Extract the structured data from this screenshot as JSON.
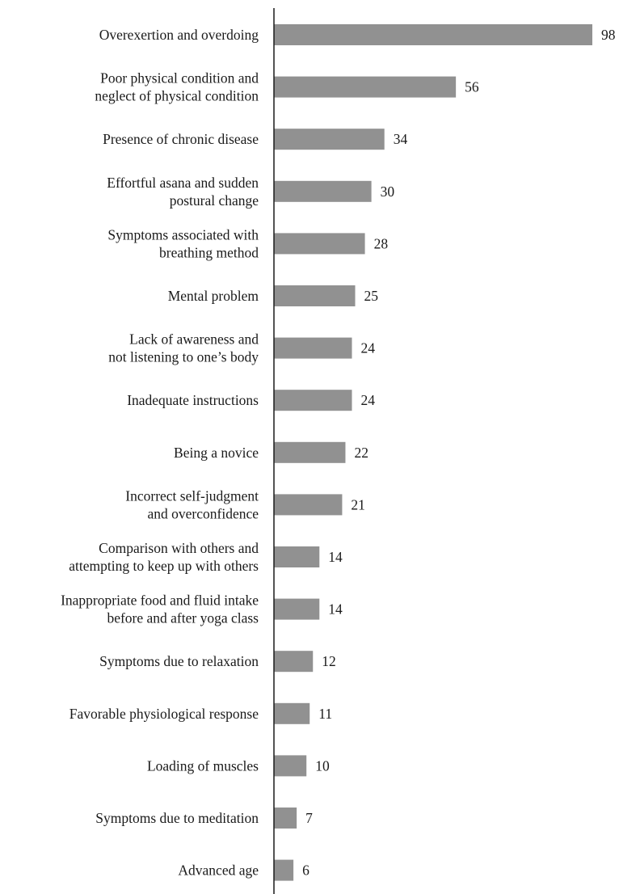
{
  "chart_data": {
    "type": "bar",
    "orientation": "horizontal",
    "title": "",
    "xlabel": "",
    "ylabel": "",
    "xlim": [
      0,
      98
    ],
    "grid": false,
    "legend": "none",
    "colors": {
      "bar": "#919191",
      "text": "#1a1a1a",
      "axis": "#1a1a1a"
    },
    "categories": [
      [
        "Overexertion and overdoing"
      ],
      [
        "Poor physical condition and",
        "neglect of physical condition"
      ],
      [
        "Presence of chronic disease"
      ],
      [
        "Effortful asana and sudden",
        "postural change"
      ],
      [
        "Symptoms associated with",
        "breathing method"
      ],
      [
        "Mental problem"
      ],
      [
        "Lack of awareness and",
        "not listening to one’s body"
      ],
      [
        "Inadequate instructions"
      ],
      [
        "Being a novice"
      ],
      [
        "Incorrect self-judgment",
        "and overconfidence"
      ],
      [
        "Comparison with others and",
        "attempting to keep up with others"
      ],
      [
        "Inappropriate food and fluid intake",
        "before and after yoga class"
      ],
      [
        "Symptoms due to relaxation"
      ],
      [
        "Favorable physiological response"
      ],
      [
        "Loading of muscles"
      ],
      [
        "Symptoms due to meditation"
      ],
      [
        "Advanced age"
      ]
    ],
    "values": [
      98,
      56,
      34,
      30,
      28,
      25,
      24,
      24,
      22,
      21,
      14,
      14,
      12,
      11,
      10,
      7,
      6
    ]
  }
}
